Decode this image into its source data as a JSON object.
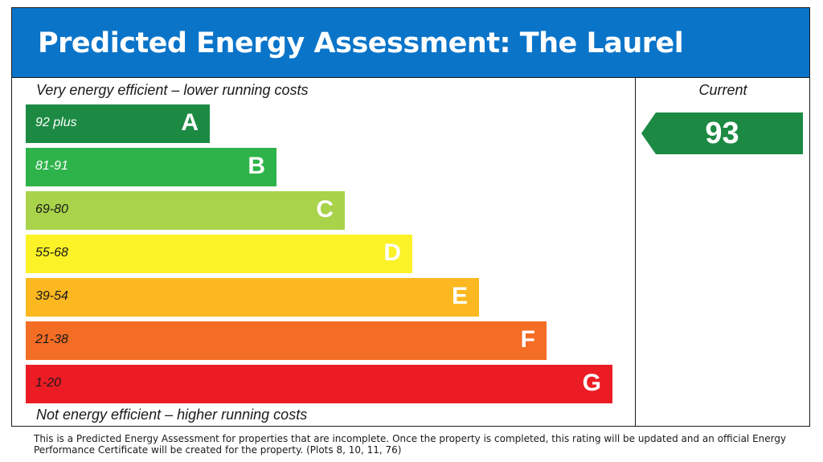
{
  "title": "Predicted Energy Assessment: The Laurel",
  "top_label": "Very energy efficient – lower running costs",
  "bottom_label": "Not energy efficient – higher running costs",
  "current_label": "Current",
  "chart_data": {
    "type": "bar",
    "bands": [
      {
        "letter": "A",
        "range": "92 plus",
        "color": "#1c8a43",
        "text_color": "#ffffff"
      },
      {
        "letter": "B",
        "range": "81-91",
        "color": "#2eb34a",
        "text_color": "#ffffff"
      },
      {
        "letter": "C",
        "range": "69-80",
        "color": "#a8d34a",
        "text_color": "#1a1a1a"
      },
      {
        "letter": "D",
        "range": "55-68",
        "color": "#fbf227",
        "text_color": "#1a1a1a"
      },
      {
        "letter": "E",
        "range": "39-54",
        "color": "#fbb820",
        "text_color": "#1a1a1a"
      },
      {
        "letter": "F",
        "range": "21-38",
        "color": "#f46d25",
        "text_color": "#1a1a1a"
      },
      {
        "letter": "G",
        "range": "1-20",
        "color": "#ec1c24",
        "text_color": "#1a1a1a"
      }
    ],
    "current": {
      "value": "93",
      "band": "A",
      "color": "#1c8a43"
    }
  },
  "footnote": "This is a Predicted Energy Assessment for properties that are incomplete. Once the property is completed, this rating will be updated and an official Energy Performance Certificate will be created for the property. (Plots 8, 10, 11, 76)"
}
